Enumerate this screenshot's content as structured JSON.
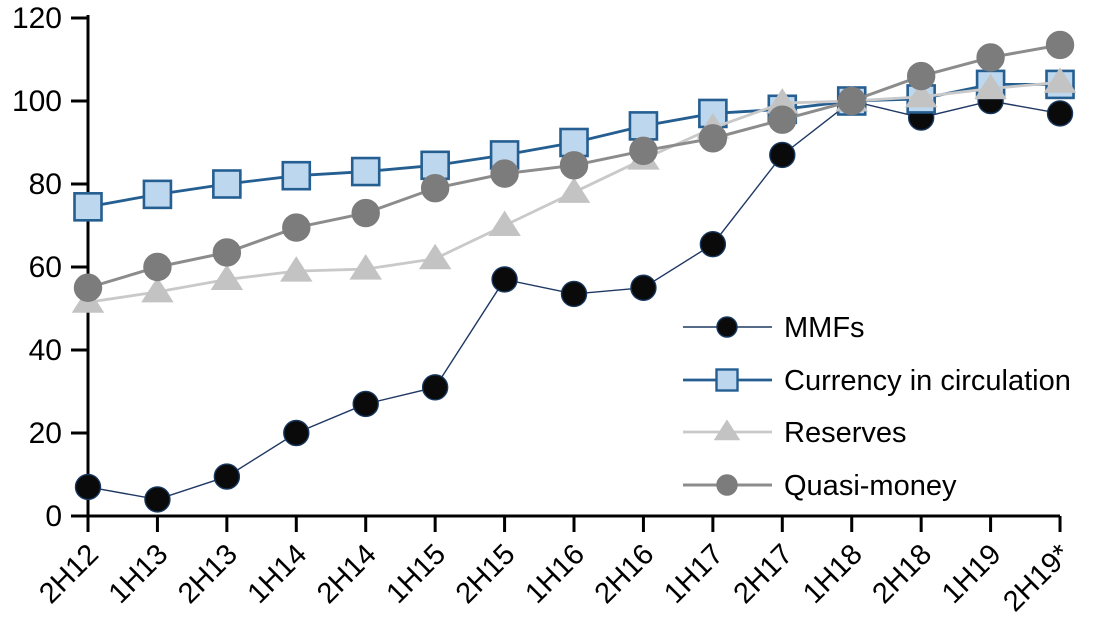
{
  "chart_data": {
    "type": "line",
    "title": "",
    "xlabel": "",
    "ylabel": "",
    "grid": false,
    "legend_position": "center-right-inside",
    "categories": [
      "2H12",
      "1H13",
      "2H13",
      "1H14",
      "2H14",
      "1H15",
      "2H15",
      "1H16",
      "2H16",
      "1H17",
      "2H17",
      "1H18",
      "2H18",
      "1H19",
      "2H19*"
    ],
    "y_axis": {
      "min": 0,
      "max": 120,
      "step": 20,
      "tick_labels": [
        "0",
        "20",
        "40",
        "60",
        "80",
        "100",
        "120"
      ]
    },
    "series": [
      {
        "name": "MMFs",
        "marker": "circle",
        "values": [
          7,
          4,
          9.5,
          20,
          27,
          31,
          57,
          53.5,
          55,
          65.5,
          87,
          100,
          96,
          100,
          97
        ],
        "line_color": "#1F3864",
        "marker_fill": "#0A0A0A",
        "marker_stroke": "#17375E"
      },
      {
        "name": "Currency in circulation",
        "marker": "square",
        "values": [
          74.5,
          77.5,
          80,
          82,
          83,
          84.5,
          87,
          90,
          94,
          97,
          98,
          100,
          100.5,
          104,
          104
        ],
        "line_color": "#255E91",
        "marker_fill": "#BDD7EE",
        "marker_stroke": "#255E91"
      },
      {
        "name": "Reserves",
        "marker": "triangle",
        "values": [
          51.5,
          54,
          57,
          59,
          59.5,
          62,
          70,
          78,
          86,
          93.5,
          99.5,
          100,
          101,
          103,
          104.5
        ],
        "line_color": "#C9C9C9",
        "marker_fill": "#C3C3C3",
        "marker_stroke": "#C3C3C3"
      },
      {
        "name": "Quasi-money",
        "marker": "circle",
        "values": [
          55,
          60,
          63.5,
          69.5,
          73,
          79,
          82.5,
          84.5,
          88,
          91,
          95.5,
          100,
          106,
          110.5,
          113.5
        ],
        "line_color": "#8C8C8C",
        "marker_fill": "#7C7C7C",
        "marker_stroke": "#7C7C7C"
      }
    ]
  }
}
